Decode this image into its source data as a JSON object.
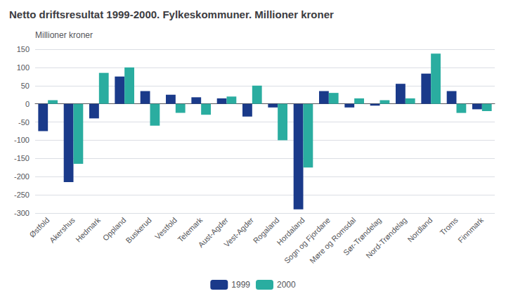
{
  "chart_data": {
    "type": "bar",
    "title": "Netto driftsresultat 1999-2000. Fylkeskommuner. Millioner kroner",
    "ylabel": "Millioner kroner",
    "categories": [
      "Østfold",
      "Akershus",
      "Hedmark",
      "Oppland",
      "Buskerud",
      "Vestfold",
      "Telemark",
      "Aust-Agder",
      "Vest-Agder",
      "Rogaland",
      "Hordaland",
      "Sogn og Fjordane",
      "Møre og Romsdal",
      "Sør-Trøndelag",
      "Nord-Trøndelag",
      "Nordland",
      "Troms",
      "Finnmark"
    ],
    "series": [
      {
        "name": "1999",
        "color": "#1a3a8a",
        "values": [
          -75,
          -215,
          -40,
          75,
          35,
          25,
          18,
          15,
          -35,
          -10,
          -290,
          35,
          -10,
          -5,
          55,
          83,
          35,
          -15
        ]
      },
      {
        "name": "2000",
        "color": "#2aada0",
        "values": [
          10,
          -165,
          85,
          100,
          -60,
          -25,
          -30,
          20,
          50,
          -100,
          -175,
          30,
          15,
          10,
          15,
          138,
          -25,
          -20
        ]
      }
    ],
    "ylim": [
      -300,
      150
    ],
    "yticks": [
      -300,
      -250,
      -200,
      -150,
      -100,
      -50,
      0,
      50,
      100,
      150
    ],
    "grid": true,
    "legend": "bottom"
  }
}
